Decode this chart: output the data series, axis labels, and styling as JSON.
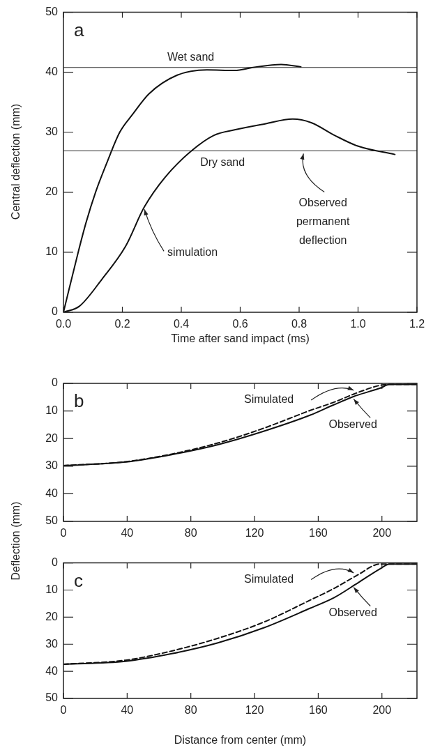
{
  "chart_data": [
    {
      "type": "line",
      "xlabel": "Time after sand impact (ms)",
      "ylabel": "Central deflection (mm)",
      "xlim": [
        0,
        1.2
      ],
      "ylim": [
        0,
        50
      ],
      "xticks": [
        {
          "value": 0,
          "label": "0.0"
        },
        0.2,
        0.4,
        0.6,
        0.8,
        {
          "value": 1,
          "label": "1.0"
        },
        1.2
      ],
      "yticks": [
        0,
        10,
        20,
        30,
        40,
        50
      ],
      "grid": false,
      "legend": false,
      "marker": "none",
      "line_style": "solid",
      "ref_lines": [
        {
          "axis": "y",
          "value": 40.8,
          "label": "Wet sand",
          "color": "#222222"
        },
        {
          "axis": "y",
          "value": 26.9,
          "label": "Dry sand",
          "color": "#222222"
        }
      ],
      "annotations": [
        "a",
        {
          "text": "simulation",
          "x": 0.27,
          "y": 17.5
        },
        {
          "text": "Observed permanent deflection",
          "x": 0.81,
          "y": 26.9
        }
      ],
      "series": [
        {
          "color": "#111111",
          "x": [
            0,
            0.05,
            0.077,
            0.109,
            0.148,
            0.191,
            0.235,
            0.29,
            0.385,
            0.487,
            0.581,
            0.644,
            0.739,
            0.806
          ],
          "values": [
            0,
            10,
            15,
            20,
            25,
            30,
            33,
            36.4,
            39.5,
            40.4,
            40.3,
            40.8,
            41.3,
            40.9
          ]
        },
        {
          "color": "#111111",
          "x": [
            0,
            0.054,
            0.132,
            0.211,
            0.274,
            0.345,
            0.432,
            0.511,
            0.581,
            0.684,
            0.778,
            0.841,
            0.92,
            0.999,
            1.125
          ],
          "values": [
            0,
            1,
            5.6,
            11,
            17.5,
            22.5,
            26.8,
            29.5,
            30.4,
            31.4,
            32.2,
            31.6,
            29.5,
            27.7,
            26.3
          ]
        }
      ]
    },
    {
      "type": "line",
      "ylabel": "Deflection (mm)",
      "xlim": [
        0,
        222
      ],
      "ylim": [
        50,
        0
      ],
      "xticks": [
        0,
        40,
        80,
        120,
        160,
        200
      ],
      "yticks": [
        0,
        10,
        20,
        30,
        40,
        50
      ],
      "grid": false,
      "legend": false,
      "marker": "none",
      "annotations": [
        "b"
      ],
      "series": [
        {
          "name": "Simulated",
          "color": "#111111",
          "line_style": "dashed",
          "x": [
            0,
            39,
            68,
            97,
            126,
            155,
            170,
            184,
            199,
            204.8,
            222
          ],
          "values": [
            29.8,
            28.4,
            25.6,
            21.6,
            16.2,
            9.8,
            6.8,
            3.5,
            0.7,
            0.4,
            0.4
          ]
        },
        {
          "name": "Observed",
          "color": "#111111",
          "line_style": "solid",
          "x": [
            0,
            39,
            68,
            97,
            126,
            155,
            170,
            184,
            199,
            204.8,
            222
          ],
          "values": [
            29.8,
            28.5,
            25.8,
            22.2,
            17.3,
            11.5,
            7.7,
            4.4,
            1.7,
            0.4,
            0.4
          ]
        }
      ]
    },
    {
      "type": "line",
      "xlabel": "Distance from center (mm)",
      "xlim": [
        0,
        222
      ],
      "ylim": [
        50,
        0
      ],
      "xticks": [
        0,
        40,
        80,
        120,
        160,
        200
      ],
      "yticks": [
        0,
        10,
        20,
        30,
        40,
        50
      ],
      "grid": false,
      "legend": false,
      "marker": "none",
      "annotations": [
        "c"
      ],
      "series": [
        {
          "name": "Simulated",
          "color": "#111111",
          "line_style": "dashed",
          "x": [
            0,
            39,
            68,
            97,
            126,
            155,
            170,
            184,
            199,
            204.8,
            222
          ],
          "values": [
            37.4,
            35.9,
            32.5,
            27.8,
            21.8,
            13.7,
            9.4,
            4.7,
            0.4,
            0.4,
            0.4
          ]
        },
        {
          "name": "Observed",
          "color": "#111111",
          "line_style": "solid",
          "x": [
            0,
            39,
            68,
            97,
            126,
            155,
            170,
            184,
            199,
            204.8,
            222
          ],
          "values": [
            37.4,
            36.3,
            33.5,
            29.5,
            23.9,
            16.7,
            12.8,
            7.7,
            2.1,
            0.4,
            0.4
          ]
        }
      ]
    }
  ]
}
